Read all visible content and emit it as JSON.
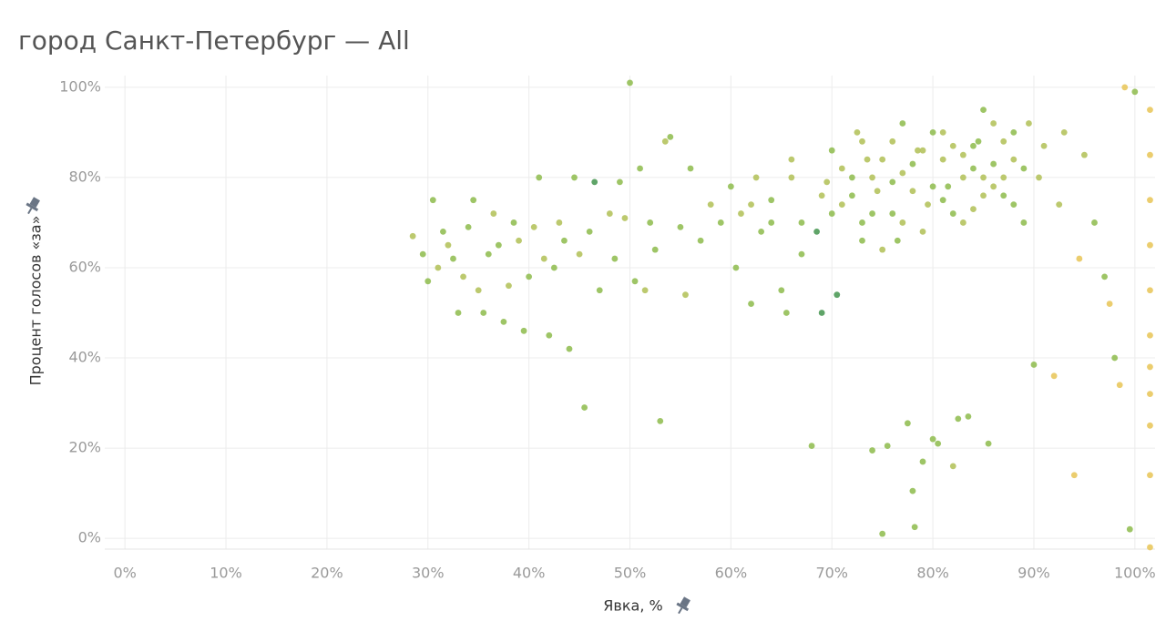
{
  "chart_data": {
    "type": "scatter",
    "title": "город Санкт-Петербург — All",
    "x_label": "Явка, %",
    "y_label": "Процент голосов «за»",
    "xlim": [
      -2,
      102
    ],
    "ylim": [
      -2.4,
      102.6
    ],
    "xticks": [
      {
        "value": 0,
        "label": "0%"
      },
      {
        "value": 10,
        "label": "10%"
      },
      {
        "value": 20,
        "label": "20%"
      },
      {
        "value": 30,
        "label": "30%"
      },
      {
        "value": 40,
        "label": "40%"
      },
      {
        "value": 50,
        "label": "50%"
      },
      {
        "value": 60,
        "label": "60%"
      },
      {
        "value": 70,
        "label": "70%"
      },
      {
        "value": 80,
        "label": "80%"
      },
      {
        "value": 90,
        "label": "90%"
      },
      {
        "value": 100,
        "label": "100%"
      }
    ],
    "yticks": [
      {
        "value": 0,
        "label": "0%"
      },
      {
        "value": 20,
        "label": "20%"
      },
      {
        "value": 40,
        "label": "40%"
      },
      {
        "value": 60,
        "label": "60%"
      },
      {
        "value": 80,
        "label": "80%"
      },
      {
        "value": 100,
        "label": "100%"
      }
    ],
    "grid": true,
    "x": [
      28.5,
      29.5,
      30,
      30.5,
      31,
      31.5,
      32,
      32.5,
      33,
      33.5,
      34,
      34.5,
      35,
      35.5,
      36,
      36.5,
      37,
      37.5,
      38,
      38.5,
      39,
      39.5,
      40,
      40.5,
      41,
      41.5,
      42,
      42.5,
      43,
      43.5,
      44,
      44.5,
      45,
      45.5,
      46,
      46.5,
      47,
      48,
      48.5,
      49,
      49.5,
      50,
      50.5,
      51,
      51.5,
      52,
      52.5,
      53,
      53.5,
      54,
      55,
      55.5,
      56,
      57,
      58,
      59,
      60,
      60.5,
      61,
      62,
      62.5,
      63,
      64,
      65,
      65.5,
      66,
      67,
      68,
      68.5,
      69,
      69.5,
      70,
      70.5,
      71,
      72,
      72.5,
      73,
      73.5,
      74,
      74.5,
      75,
      75.5,
      76,
      76.5,
      77,
      77.5,
      78,
      78.2,
      78.5,
      79,
      79.5,
      80,
      80.5,
      81,
      81.5,
      82,
      82.5,
      83,
      83.5,
      84,
      84.5,
      85,
      85.5,
      86,
      87,
      88,
      89,
      89.5,
      90,
      90.5,
      91,
      92,
      92.5,
      93,
      94,
      94.5,
      95,
      96,
      97,
      97.5,
      98,
      98.5,
      99,
      99.5,
      100,
      101.5,
      101.5,
      101.5,
      101.5,
      101.5,
      101.5,
      101.5,
      101.5,
      101.5,
      101.5,
      101.5,
      71,
      72,
      73,
      74,
      75,
      76,
      77,
      78,
      79,
      80,
      81,
      82,
      83,
      84,
      85,
      86,
      87,
      88,
      73,
      75,
      77,
      79,
      81,
      83,
      85,
      87,
      89,
      74,
      76,
      78,
      80,
      82,
      84,
      86,
      88,
      70,
      69,
      67,
      66,
      64,
      62
    ],
    "values": [
      67,
      63,
      57,
      75,
      60,
      68,
      65,
      62,
      50,
      58,
      69,
      75,
      55,
      50,
      63,
      72,
      65,
      48,
      56,
      70,
      66,
      46,
      58,
      69,
      80,
      62,
      45,
      60,
      70,
      66,
      42,
      80,
      63,
      29,
      68,
      79,
      55,
      72,
      62,
      79,
      71,
      101,
      57,
      82,
      55,
      70,
      64,
      26,
      88,
      89,
      69,
      54,
      82,
      66,
      74,
      70,
      78,
      60,
      72,
      52,
      80,
      68,
      75,
      55,
      50,
      84,
      63,
      20.5,
      68,
      50,
      79,
      86,
      54,
      74,
      80,
      90,
      70,
      84,
      19.5,
      77,
      1,
      20.5,
      88,
      66,
      81,
      25.5,
      10.5,
      2.5,
      86,
      17,
      74,
      22,
      21,
      90,
      78,
      16,
      26.5,
      85,
      27,
      73,
      88,
      80,
      21,
      92,
      76,
      84,
      70,
      92,
      38.5,
      80,
      87,
      36,
      74,
      90,
      14,
      62,
      85,
      70,
      58,
      52,
      40,
      34,
      100,
      2,
      99,
      95,
      85,
      75,
      65,
      55,
      45,
      38,
      32,
      25,
      14,
      -2,
      82,
      76,
      88,
      72,
      84,
      79,
      70,
      83,
      86,
      78,
      84,
      72,
      80,
      87,
      76,
      83,
      80,
      74,
      66,
      64,
      92,
      68,
      75,
      70,
      95,
      88,
      82,
      80,
      72,
      77,
      90,
      87,
      82,
      78,
      90,
      72,
      76,
      70,
      80,
      70,
      74
    ],
    "colors": [
      "#b5c35e",
      "#93bf55",
      "#93bf55",
      "#93bf55",
      "#b5c35e",
      "#93bf55",
      "#b5c35e",
      "#93bf55",
      "#93bf55",
      "#b5c35e",
      "#93bf55",
      "#93bf55",
      "#b5c35e",
      "#93bf55",
      "#93bf55",
      "#b5c35e",
      "#93bf55",
      "#93bf55",
      "#b5c35e",
      "#93bf55",
      "#b5c35e",
      "#93bf55",
      "#93bf55",
      "#b5c35e",
      "#93bf55",
      "#b5c35e",
      "#93bf55",
      "#93bf55",
      "#b5c35e",
      "#93bf55",
      "#93bf55",
      "#93bf55",
      "#b5c35e",
      "#93bf55",
      "#93bf55",
      "#4e9a58",
      "#93bf55",
      "#b5c35e",
      "#93bf55",
      "#93bf55",
      "#b5c35e",
      "#93bf55",
      "#93bf55",
      "#93bf55",
      "#b5c35e",
      "#93bf55",
      "#93bf55",
      "#93bf55",
      "#b5c35e",
      "#93bf55",
      "#93bf55",
      "#b5c35e",
      "#93bf55",
      "#93bf55",
      "#b5c35e",
      "#93bf55",
      "#93bf55",
      "#93bf55",
      "#b5c35e",
      "#93bf55",
      "#b5c35e",
      "#93bf55",
      "#93bf55",
      "#93bf55",
      "#93bf55",
      "#b5c35e",
      "#93bf55",
      "#93bf55",
      "#4e9a58",
      "#4e9a58",
      "#b5c35e",
      "#93bf55",
      "#4e9a58",
      "#b5c35e",
      "#93bf55",
      "#b5c35e",
      "#93bf55",
      "#b5c35e",
      "#93bf55",
      "#b5c35e",
      "#93bf55",
      "#93bf55",
      "#b5c35e",
      "#93bf55",
      "#b5c35e",
      "#93bf55",
      "#93bf55",
      "#93bf55",
      "#b5c35e",
      "#93bf55",
      "#b5c35e",
      "#93bf55",
      "#93bf55",
      "#b5c35e",
      "#93bf55",
      "#b5c35e",
      "#93bf55",
      "#b5c35e",
      "#93bf55",
      "#b5c35e",
      "#93bf55",
      "#b5c35e",
      "#93bf55",
      "#b5c35e",
      "#93bf55",
      "#b5c35e",
      "#93bf55",
      "#b5c35e",
      "#93bf55",
      "#b5c35e",
      "#b5c35e",
      "#e9c85e",
      "#b5c35e",
      "#b5c35e",
      "#e9c85e",
      "#e9c85e",
      "#b5c35e",
      "#93bf55",
      "#93bf55",
      "#e9c85e",
      "#93bf55",
      "#e9c85e",
      "#e9c85e",
      "#93bf55",
      "#93bf55",
      "#e9c85e",
      "#e9c85e",
      "#e9c85e",
      "#e9c85e",
      "#e9c85e",
      "#e9c85e",
      "#e9c85e",
      "#e9c85e",
      "#e9c85e",
      "#e9c85e",
      "#e9c85e",
      "#b5c35e",
      "#93bf55",
      "#b5c35e",
      "#93bf55",
      "#b5c35e",
      "#93bf55",
      "#b5c35e",
      "#93bf55",
      "#b5c35e",
      "#93bf55",
      "#b5c35e",
      "#93bf55",
      "#b5c35e",
      "#93bf55",
      "#b5c35e",
      "#93bf55",
      "#b5c35e",
      "#93bf55",
      "#93bf55",
      "#b5c35e",
      "#93bf55",
      "#b5c35e",
      "#93bf55",
      "#b5c35e",
      "#93bf55",
      "#b5c35e",
      "#93bf55",
      "#b5c35e",
      "#93bf55",
      "#b5c35e",
      "#93bf55",
      "#b5c35e",
      "#93bf55",
      "#b5c35e",
      "#93bf55",
      "#93bf55",
      "#b5c35e",
      "#93bf55",
      "#b5c35e",
      "#93bf55",
      "#b5c35e"
    ]
  }
}
